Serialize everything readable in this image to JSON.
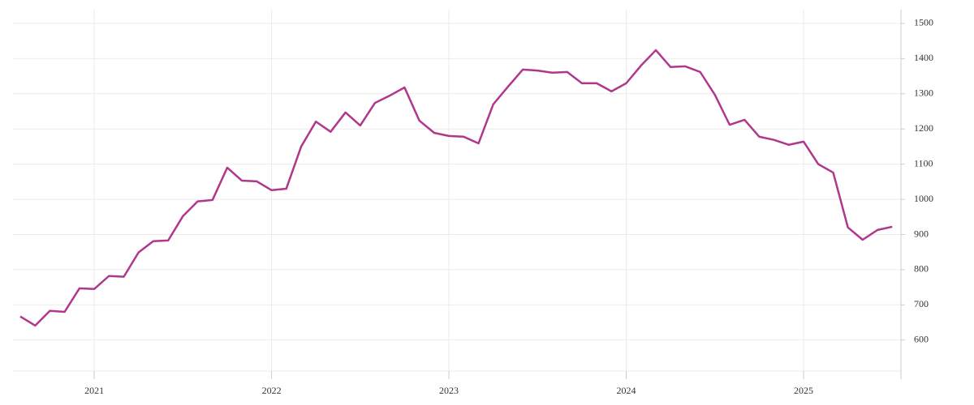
{
  "chart_data": {
    "type": "line",
    "x": [
      2020.583,
      2020.667,
      2020.75,
      2020.833,
      2020.917,
      2021.0,
      2021.083,
      2021.167,
      2021.25,
      2021.333,
      2021.417,
      2021.5,
      2021.583,
      2021.667,
      2021.75,
      2021.833,
      2021.917,
      2022.0,
      2022.083,
      2022.167,
      2022.25,
      2022.333,
      2022.417,
      2022.5,
      2022.583,
      2022.667,
      2022.75,
      2022.833,
      2022.917,
      2023.0,
      2023.083,
      2023.167,
      2023.25,
      2023.333,
      2023.417,
      2023.5,
      2023.583,
      2023.667,
      2023.75,
      2023.833,
      2023.917,
      2024.0,
      2024.083,
      2024.167,
      2024.25,
      2024.333,
      2024.417,
      2024.5,
      2024.583,
      2024.667,
      2024.75,
      2024.833,
      2024.917,
      2025.0,
      2025.083,
      2025.167,
      2025.25,
      2025.333,
      2025.417,
      2025.5
    ],
    "values": [
      667,
      641,
      683,
      680,
      747,
      745,
      782,
      780,
      849,
      881,
      883,
      952,
      994,
      998,
      1090,
      1053,
      1051,
      1026,
      1030,
      1150,
      1221,
      1192,
      1247,
      1210,
      1274,
      1295,
      1318,
      1224,
      1189,
      1180,
      1178,
      1159,
      1270,
      1320,
      1369,
      1366,
      1360,
      1362,
      1330,
      1330,
      1307,
      1330,
      1380,
      1424,
      1376,
      1378,
      1362,
      1297,
      1212,
      1226,
      1178,
      1169,
      1155,
      1164,
      1100,
      1076,
      920,
      885,
      913,
      922
    ],
    "color": "#b0378c",
    "xlim": [
      2020.542,
      2025.549
    ],
    "xticks": [
      2021,
      2022,
      2023,
      2024,
      2025
    ],
    "ylim": [
      512,
      1539
    ],
    "yticks": [
      600,
      700,
      800,
      900,
      1000,
      1100,
      1200,
      1300,
      1400,
      1500
    ],
    "grid": true
  }
}
